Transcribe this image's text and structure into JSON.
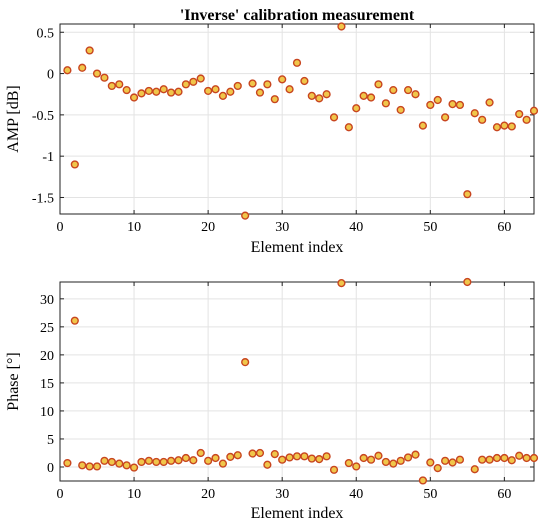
{
  "chart_data": [
    {
      "type": "scatter",
      "title": "'Inverse' calibration measurement",
      "xlabel": "Element index",
      "ylabel": "AMP [dB]",
      "xlim": [
        0,
        64
      ],
      "ylim": [
        -1.7,
        0.6
      ],
      "xticks": [
        0,
        10,
        20,
        30,
        40,
        50,
        60
      ],
      "yticks": [
        0.5,
        0,
        -0.5,
        -1,
        -1.5
      ],
      "ytick_labels": [
        "0.5",
        "0",
        "-0.5",
        "-1",
        "-1.5"
      ],
      "grid": true,
      "marker_fill": "#f0c64a",
      "marker_edge": "#c8451f",
      "x": [
        1,
        2,
        3,
        4,
        5,
        6,
        7,
        8,
        9,
        10,
        11,
        12,
        13,
        14,
        15,
        16,
        17,
        18,
        19,
        20,
        21,
        22,
        23,
        24,
        25,
        26,
        27,
        28,
        29,
        30,
        31,
        32,
        33,
        34,
        35,
        36,
        37,
        38,
        39,
        40,
        41,
        42,
        43,
        44,
        45,
        46,
        47,
        48,
        49,
        50,
        51,
        52,
        53,
        54,
        55,
        56,
        57,
        58,
        59,
        60,
        61,
        62,
        63,
        64
      ],
      "y": [
        0.04,
        -1.1,
        0.07,
        0.28,
        0,
        -0.05,
        -0.15,
        -0.13,
        -0.2,
        -0.29,
        -0.24,
        -0.21,
        -0.22,
        -0.19,
        -0.23,
        -0.22,
        -0.13,
        -0.1,
        -0.06,
        -0.21,
        -0.19,
        -0.27,
        -0.22,
        -0.15,
        -1.72,
        -0.12,
        -0.23,
        -0.13,
        -0.31,
        -0.07,
        -0.19,
        0.13,
        -0.09,
        -0.27,
        -0.3,
        -0.25,
        -0.53,
        0.57,
        -0.65,
        -0.42,
        -0.27,
        -0.29,
        -0.13,
        -0.36,
        -0.2,
        -0.44,
        -0.2,
        -0.25,
        -0.63,
        -0.38,
        -0.32,
        -0.53,
        -0.37,
        -0.38,
        -1.46,
        -0.48,
        -0.56,
        -0.35,
        -0.65,
        -0.63,
        -0.64,
        -0.49,
        -0.56,
        -0.45
      ]
    },
    {
      "type": "scatter",
      "title": "",
      "xlabel": "Element index",
      "ylabel": "Phase [°]",
      "xlim": [
        0,
        64
      ],
      "ylim": [
        -2.5,
        33
      ],
      "xticks": [
        0,
        10,
        20,
        30,
        40,
        50,
        60
      ],
      "yticks": [
        30,
        25,
        20,
        15,
        10,
        5,
        0
      ],
      "ytick_labels": [
        "30",
        "25",
        "20",
        "15",
        "10",
        "5",
        "0"
      ],
      "grid": true,
      "marker_fill": "#f0c64a",
      "marker_edge": "#c8451f",
      "x": [
        1,
        2,
        3,
        4,
        5,
        6,
        7,
        8,
        9,
        10,
        11,
        12,
        13,
        14,
        15,
        16,
        17,
        18,
        19,
        20,
        21,
        22,
        23,
        24,
        25,
        26,
        27,
        28,
        29,
        30,
        31,
        32,
        33,
        34,
        35,
        36,
        37,
        38,
        39,
        40,
        41,
        42,
        43,
        44,
        45,
        46,
        47,
        48,
        49,
        50,
        51,
        52,
        53,
        54,
        55,
        56,
        57,
        58,
        59,
        60,
        61,
        62,
        63,
        64
      ],
      "y": [
        0.7,
        26.1,
        0.3,
        0.1,
        0.1,
        1.1,
        0.9,
        0.6,
        0.3,
        -0.1,
        0.9,
        1.1,
        0.9,
        0.9,
        1.1,
        1.2,
        1.6,
        1.2,
        2.5,
        1.1,
        1.6,
        0.6,
        1.8,
        2.1,
        18.7,
        2.4,
        2.5,
        0.4,
        2.3,
        1.3,
        1.7,
        1.9,
        1.9,
        1.5,
        1.4,
        1.9,
        -0.5,
        32.8,
        0.7,
        0.1,
        1.6,
        1.3,
        2.0,
        0.9,
        0.6,
        1.1,
        1.7,
        2.2,
        -2.4,
        0.8,
        -0.2,
        1.1,
        0.8,
        1.3,
        33.0,
        -0.4,
        1.3,
        1.3,
        1.6,
        1.6,
        1.2,
        2.0,
        1.6,
        1.6
      ]
    }
  ]
}
